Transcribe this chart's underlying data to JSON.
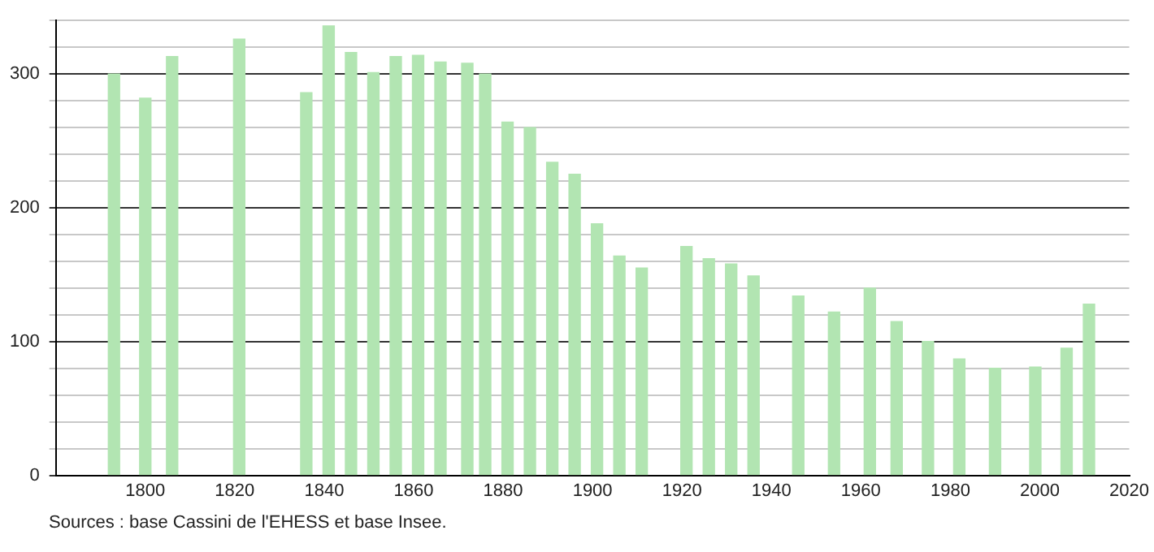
{
  "chart_data": {
    "type": "bar",
    "x": [
      1793,
      1800,
      1806,
      1821,
      1836,
      1841,
      1846,
      1851,
      1856,
      1861,
      1866,
      1872,
      1876,
      1881,
      1886,
      1891,
      1896,
      1901,
      1906,
      1911,
      1921,
      1926,
      1931,
      1936,
      1946,
      1954,
      1962,
      1968,
      1975,
      1982,
      1990,
      1999,
      2006,
      2011
    ],
    "values": [
      300,
      282,
      313,
      326,
      286,
      336,
      316,
      301,
      313,
      314,
      309,
      308,
      300,
      264,
      260,
      234,
      225,
      188,
      164,
      155,
      171,
      162,
      158,
      149,
      134,
      122,
      140,
      115,
      100,
      87,
      80,
      81,
      95,
      128
    ],
    "color": "#b2e5b2",
    "xlim": [
      1780,
      2020
    ],
    "xticks": [
      1800,
      1820,
      1840,
      1860,
      1880,
      1900,
      1920,
      1940,
      1960,
      1980,
      2000,
      2020
    ],
    "ylim": [
      0,
      340
    ],
    "yticks": [
      0,
      {
        "value": 20,
        "label": null
      },
      {
        "value": 40,
        "label": null
      },
      {
        "value": 60,
        "label": null
      },
      {
        "value": 80,
        "label": null
      },
      100,
      {
        "value": 120,
        "label": null
      },
      {
        "value": 140,
        "label": null
      },
      {
        "value": 160,
        "label": null
      },
      {
        "value": 180,
        "label": null
      },
      200,
      {
        "value": 220,
        "label": null
      },
      {
        "value": 240,
        "label": null
      },
      {
        "value": 260,
        "label": null
      },
      {
        "value": 280,
        "label": null
      },
      300,
      {
        "value": 320,
        "label": null
      },
      {
        "value": 340,
        "label": null
      }
    ],
    "grid": "y",
    "annotations": [
      "Sources : base Cassini de l'EHESS et base Insee."
    ]
  }
}
